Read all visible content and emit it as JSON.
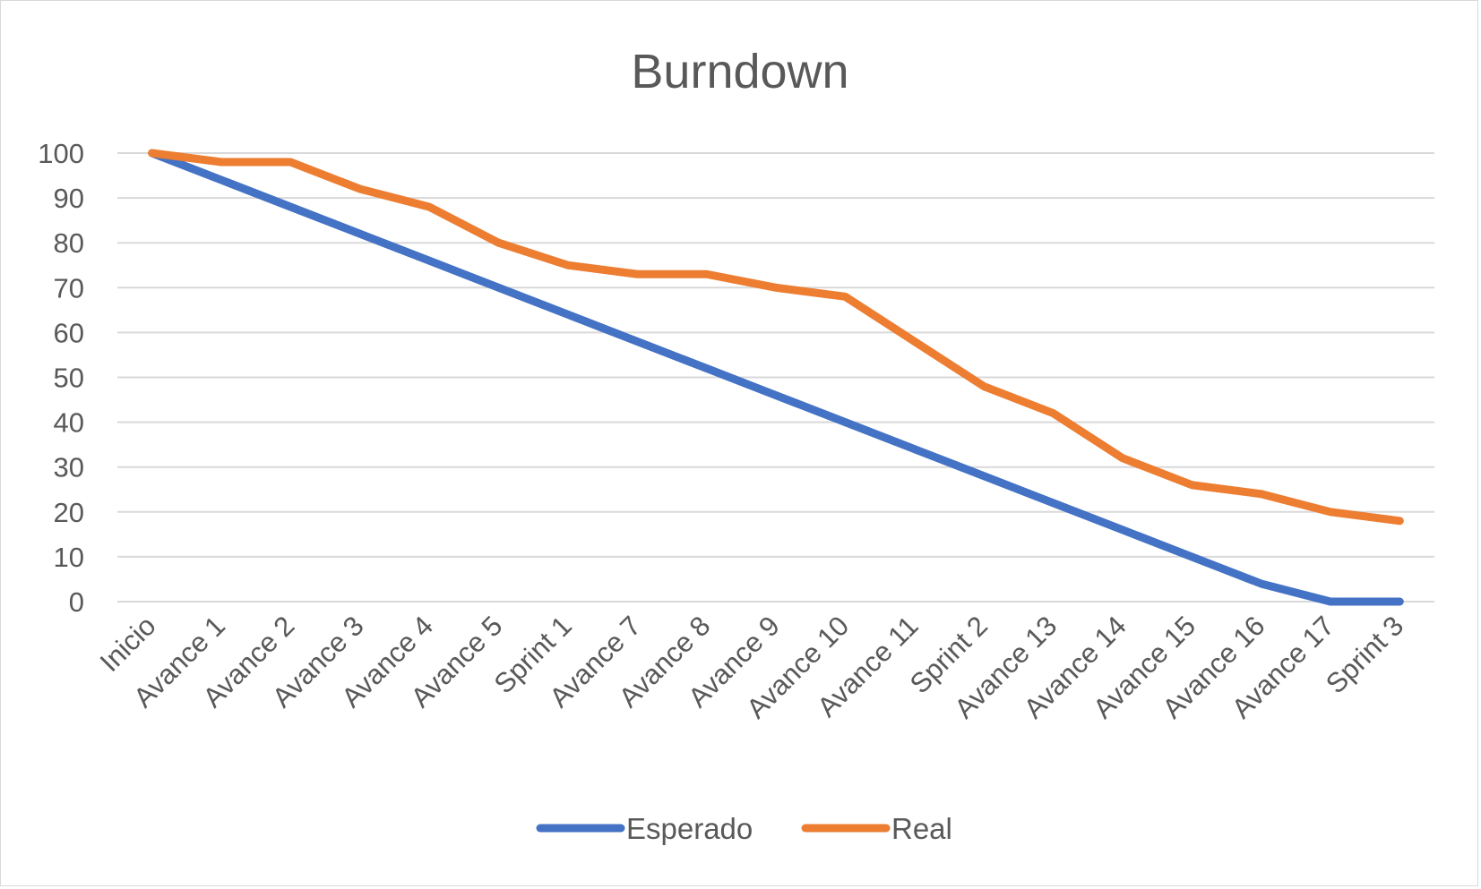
{
  "chart_data": {
    "type": "line",
    "title": "Burndown",
    "xlabel": "",
    "ylabel": "",
    "ylim": [
      0,
      100
    ],
    "yticks": [
      0,
      10,
      20,
      30,
      40,
      50,
      60,
      70,
      80,
      90,
      100
    ],
    "grid": true,
    "legend_position": "bottom",
    "categories": [
      "Inicio",
      "Avance 1",
      "Avance 2",
      "Avance 3",
      "Avance 4",
      "Avance 5",
      "Sprint 1",
      "Avance 7",
      "Avance 8",
      "Avance 9",
      "Avance 10",
      "Avance 11",
      "Sprint 2",
      "Avance 13",
      "Avance 14",
      "Avance 15",
      "Avance 16",
      "Avance 17",
      "Sprint 3"
    ],
    "series": [
      {
        "name": "Esperado",
        "color": "#4472c4",
        "values": [
          100,
          94,
          88,
          82,
          76,
          70,
          64,
          58,
          52,
          46,
          40,
          34,
          28,
          22,
          16,
          10,
          4,
          0,
          0
        ]
      },
      {
        "name": "Real",
        "color": "#ed7d31",
        "values": [
          100,
          98,
          98,
          92,
          88,
          80,
          75,
          73,
          73,
          70,
          68,
          58,
          48,
          42,
          32,
          26,
          24,
          20,
          18
        ]
      }
    ]
  }
}
